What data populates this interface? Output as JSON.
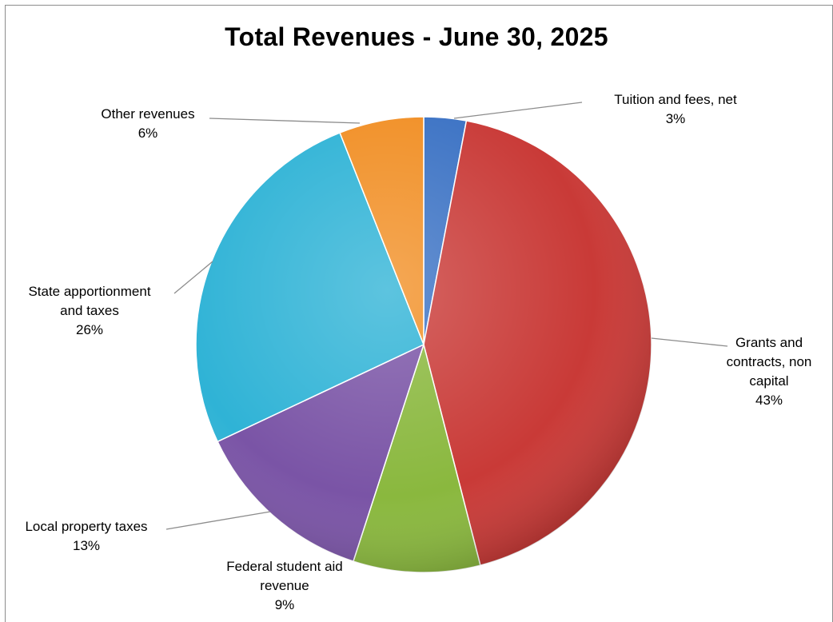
{
  "chart_data": {
    "type": "pie",
    "title": "Total Revenues - June 30, 2025",
    "slices": [
      {
        "name": "Tuition and fees, net",
        "value": 3,
        "label": "3%",
        "color": "#3b72c4"
      },
      {
        "name": "Grants and contracts, non capital",
        "value": 43,
        "label": "43%",
        "color": "#c93a37"
      },
      {
        "name": "Federal student aid revenue",
        "value": 9,
        "label": "9%",
        "color": "#8ab83e"
      },
      {
        "name": "Local property taxes",
        "value": 13,
        "label": "13%",
        "color": "#7a54a6"
      },
      {
        "name": "State apportionment and taxes",
        "value": 26,
        "label": "26%",
        "color": "#2fb3d6"
      },
      {
        "name": "Other revenues",
        "value": 6,
        "label": "6%",
        "color": "#f18f25"
      }
    ],
    "legend": "none",
    "data_labels": "outside-with-leader-lines"
  }
}
